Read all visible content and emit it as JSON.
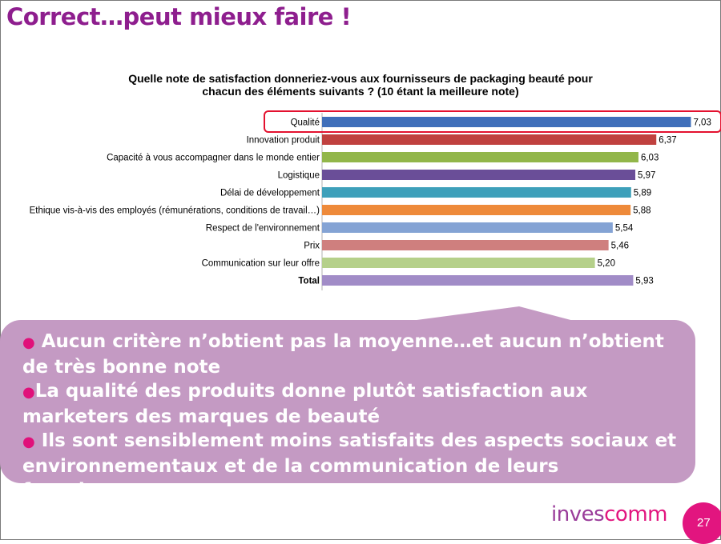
{
  "slide": {
    "title": "Correct…peut mieux faire !",
    "page_number": "27",
    "logo_part1": "inves",
    "logo_part2": "comm"
  },
  "chart_data": {
    "type": "bar",
    "orientation": "horizontal",
    "title_line1": "Quelle note de satisfaction donneriez-vous aux fournisseurs de packaging beauté pour",
    "title_line2": "chacun des éléments suivants  ? (10 étant la meilleure note)",
    "categories": [
      "Qualité",
      "Innovation produit",
      "Capacité à vous accompagner dans le monde entier",
      "Logistique",
      "Délai de développement",
      "Ethique vis-à-vis des employés (rémunérations, conditions de travail…)",
      "Respect de l'environnement",
      "Prix",
      "Communication sur leur offre",
      "Total"
    ],
    "values": [
      7.03,
      6.37,
      6.03,
      5.97,
      5.89,
      5.88,
      5.54,
      5.46,
      5.2,
      5.93
    ],
    "value_labels": [
      "7,03",
      "6,37",
      "6,03",
      "5,97",
      "5,89",
      "5,88",
      "5,54",
      "5,46",
      "5,20",
      "5,93"
    ],
    "bar_colors": [
      "#3f6fba",
      "#c0413f",
      "#92b64a",
      "#6a4e98",
      "#3ea0ba",
      "#ee8a3a",
      "#84a3d4",
      "#cf7f7e",
      "#b5d08a",
      "#a18cc7"
    ],
    "highlighted_category": "Qualité",
    "highlight_color": "#e3112f",
    "bold_category": "Total",
    "xlim": [
      0,
      10
    ]
  },
  "callout": {
    "bullets": [
      "Aucun critère n’obtient pas la moyenne…et aucun n’obtient de très bonne note",
      "La qualité des produits donne plutôt satisfaction aux marketers des marques de beauté",
      "Ils sont sensiblement moins satisfaits des aspects sociaux et environnementaux et de la communication de leurs fournisseurs"
    ]
  }
}
